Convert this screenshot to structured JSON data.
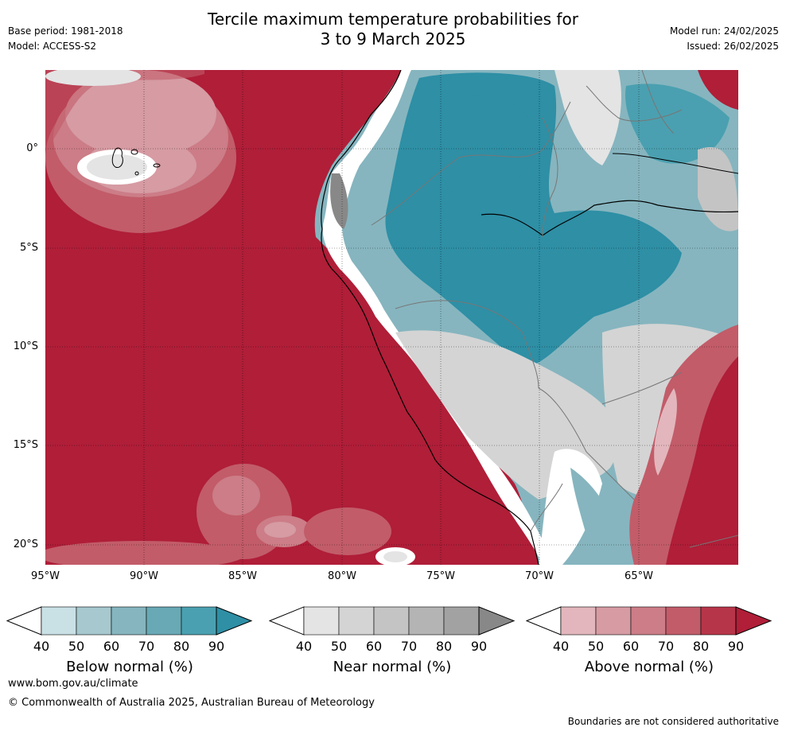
{
  "title": {
    "line1": "Tercile maximum temperature probabilities for",
    "line2": "3 to 9 March 2025"
  },
  "meta_left": {
    "base_period": "Base period: 1981-2018",
    "model": "Model: ACCESS-S2"
  },
  "meta_right": {
    "model_run": "Model run: 24/02/2025",
    "issued": "Issued: 26/02/2025"
  },
  "y_axis": [
    "0°",
    "5°S",
    "10°S",
    "15°S",
    "20°S"
  ],
  "x_axis": [
    "95°W",
    "90°W",
    "85°W",
    "80°W",
    "75°W",
    "70°W",
    "65°W"
  ],
  "colorbars": [
    {
      "title": "Below normal (%)",
      "ticks": [
        "40",
        "50",
        "60",
        "70",
        "80",
        "90"
      ],
      "colors": [
        "#ffffff",
        "#c9e0e5",
        "#a6c8ce",
        "#86b5bf",
        "#68a9b5",
        "#4aa0b0",
        "#2e8fa5"
      ]
    },
    {
      "title": "Near normal (%)",
      "ticks": [
        "40",
        "50",
        "60",
        "70",
        "80",
        "90"
      ],
      "colors": [
        "#ffffff",
        "#e4e4e4",
        "#d4d4d4",
        "#c4c4c4",
        "#b4b4b4",
        "#a2a2a2",
        "#888888"
      ]
    },
    {
      "title": "Above normal (%)",
      "ticks": [
        "40",
        "50",
        "60",
        "70",
        "80",
        "90"
      ],
      "colors": [
        "#ffffff",
        "#e2b6bc",
        "#d69ba3",
        "#cc7d87",
        "#c25c69",
        "#b73549",
        "#b01e38"
      ]
    }
  ],
  "footer": {
    "url": "www.bom.gov.au/climate",
    "copyright": "© Commonwealth of Australia 2025, Australian Bureau of Meteorology",
    "disclaimer": "Boundaries are not considered authoritative"
  }
}
